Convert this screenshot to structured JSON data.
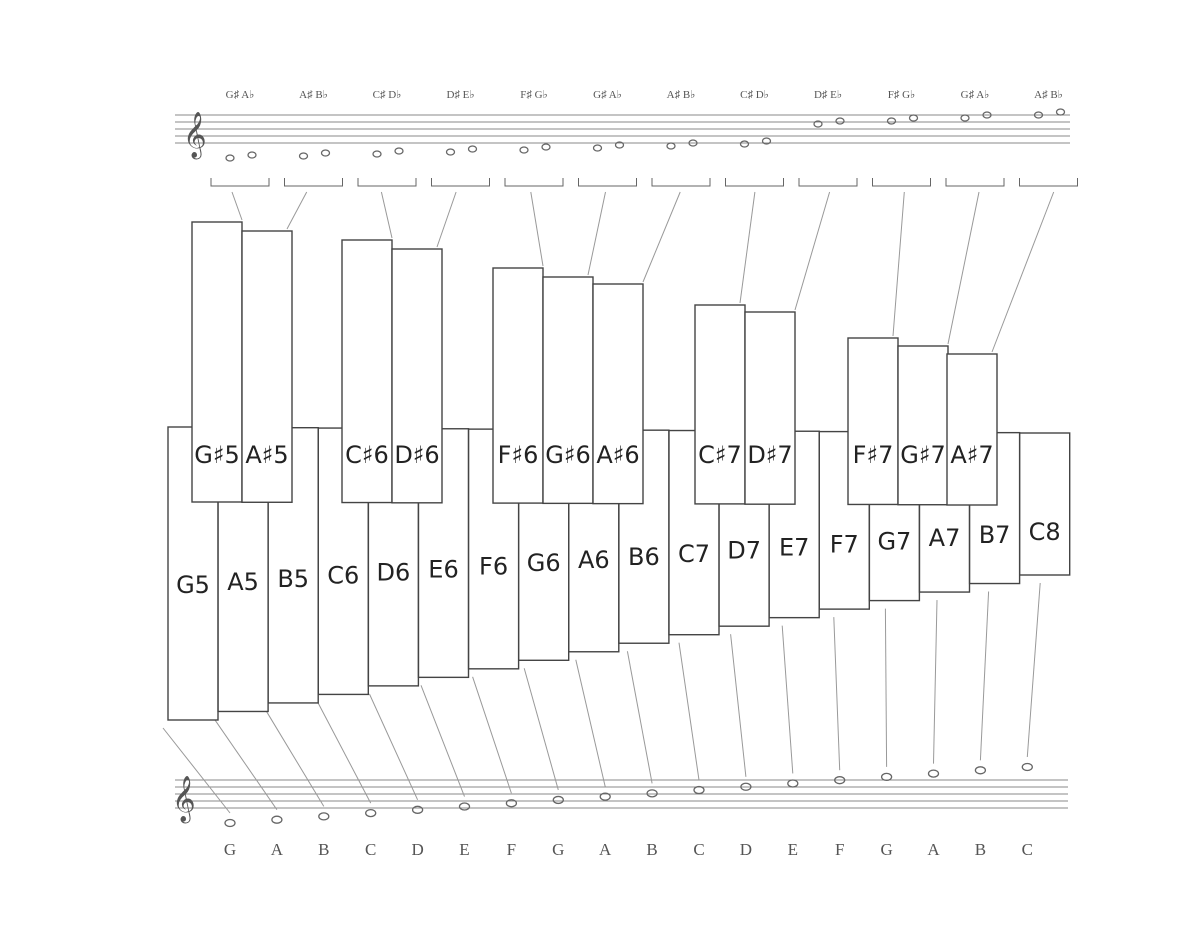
{
  "accidental_labels": [
    "G♯ A♭",
    "A♯ B♭",
    "C♯ D♭",
    "D♯ E♭",
    "F♯ G♭",
    "G♯ A♭",
    "A♯ B♭",
    "C♯ D♭",
    "D♯ E♭",
    "F♯ G♭",
    "G♯ A♭",
    "A♯ B♭"
  ],
  "sharp_bars": [
    "G♯5",
    "A♯5",
    "C♯6",
    "D♯6",
    "F♯6",
    "G♯6",
    "A♯6",
    "C♯7",
    "D♯7",
    "F♯7",
    "G♯7",
    "A♯7"
  ],
  "natural_bars": [
    "G5",
    "A5",
    "B5",
    "C6",
    "D6",
    "E6",
    "F6",
    "G6",
    "A6",
    "B6",
    "C7",
    "D7",
    "E7",
    "F7",
    "G7",
    "A7",
    "B7",
    "C8"
  ],
  "letters": [
    "G",
    "A",
    "B",
    "C",
    "D",
    "E",
    "F",
    "G",
    "A",
    "B",
    "C",
    "D",
    "E",
    "F",
    "G",
    "A",
    "B",
    "C"
  ]
}
